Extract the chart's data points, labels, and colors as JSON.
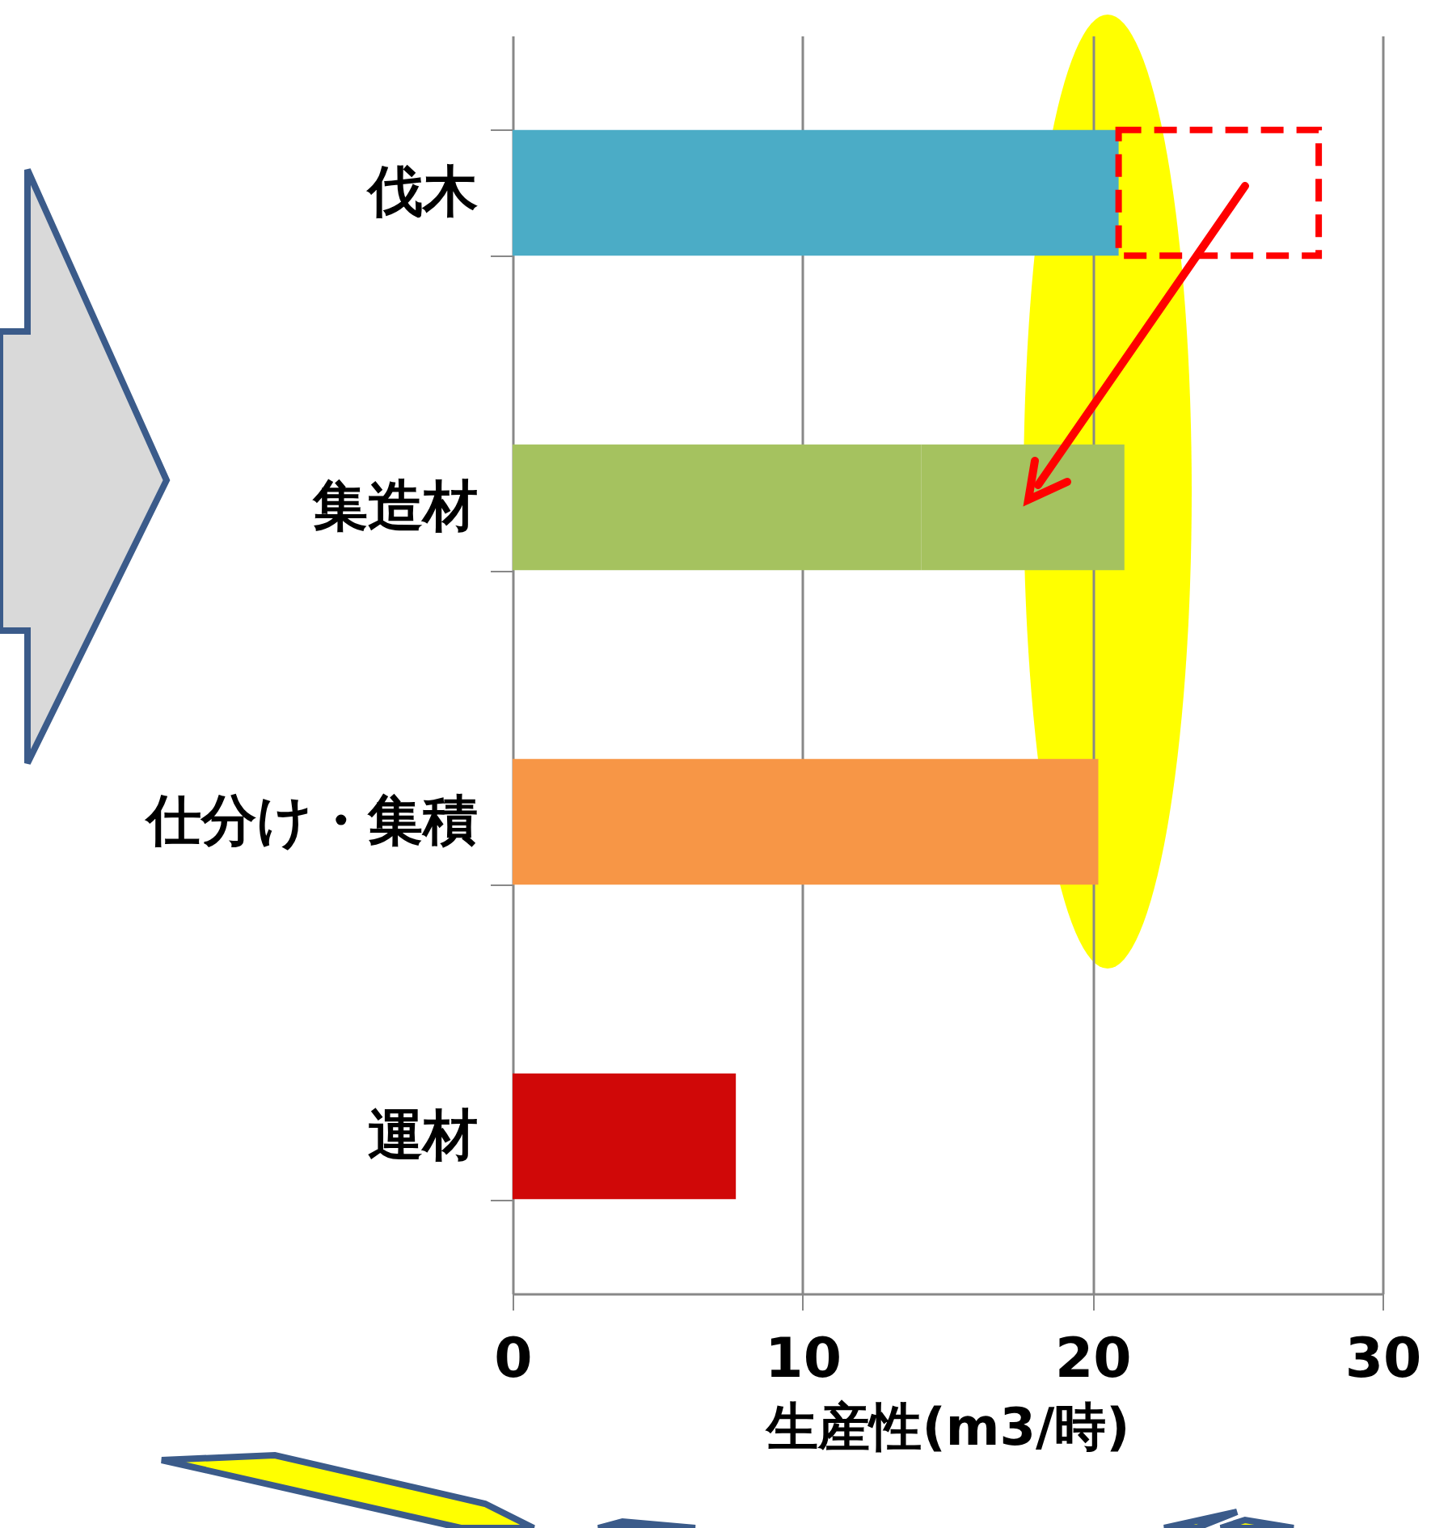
{
  "chart_data": {
    "type": "bar",
    "orientation": "horizontal",
    "stacked": true,
    "categories": [
      "伐木",
      "集造材",
      "仕分け・集積",
      "運材"
    ],
    "series": [
      {
        "colors": [
          "#4bacc6",
          "#a5c25f",
          "#f79646",
          "#d00808"
        ],
        "values": [
          20.9,
          14.1,
          20.2,
          7.7
        ]
      },
      {
        "color": "#ff0000",
        "line_style": "dashed",
        "values": [
          6.9,
          null,
          null,
          null
        ]
      },
      {
        "color": "#a5c25f",
        "values": [
          null,
          7.0,
          null,
          null
        ]
      }
    ],
    "xlabel": "生産性(m3/時)",
    "xlim": [
      0,
      30
    ],
    "xticks": [
      0,
      10,
      20,
      30
    ],
    "grid": "x"
  }
}
